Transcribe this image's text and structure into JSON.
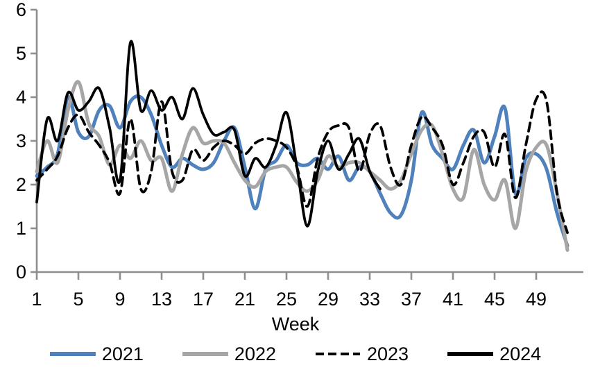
{
  "figure": {
    "xlabel": "Week"
  },
  "chart_data": {
    "type": "line",
    "title": "",
    "xlabel": "Week",
    "ylabel": "",
    "xlim": [
      1,
      53.5
    ],
    "ylim": [
      0,
      6
    ],
    "grid": false,
    "legend_position": "bottom",
    "axis_color": "#8e8e8e",
    "x_ticks": [
      1,
      5,
      9,
      13,
      17,
      21,
      25,
      29,
      33,
      37,
      41,
      45,
      49
    ],
    "y_ticks": [
      0,
      1,
      2,
      3,
      4,
      5,
      6
    ],
    "x": [
      1,
      2,
      3,
      4,
      5,
      6,
      7,
      8,
      9,
      10,
      11,
      12,
      13,
      14,
      15,
      16,
      17,
      18,
      19,
      20,
      21,
      22,
      23,
      24,
      25,
      26,
      27,
      28,
      29,
      30,
      31,
      32,
      33,
      34,
      35,
      36,
      37,
      38,
      39,
      40,
      41,
      42,
      43,
      44,
      45,
      46,
      47,
      48,
      49,
      50,
      51,
      52
    ],
    "series": [
      {
        "name": "2021",
        "color": "#4f81bd",
        "dash": "solid",
        "width": 5,
        "values": [
          2.2,
          2.4,
          2.7,
          4.0,
          3.2,
          3.1,
          3.7,
          3.8,
          3.3,
          3.9,
          4.0,
          3.6,
          2.9,
          2.4,
          2.6,
          2.45,
          2.35,
          2.5,
          3.0,
          3.3,
          2.4,
          1.45,
          2.35,
          2.55,
          2.9,
          2.5,
          2.45,
          2.6,
          2.35,
          2.65,
          2.1,
          2.4,
          2.3,
          1.8,
          1.35,
          1.3,
          2.1,
          3.65,
          2.9,
          2.6,
          2.35,
          2.9,
          3.25,
          2.5,
          3.1,
          3.75,
          1.8,
          2.6,
          2.7,
          2.35,
          1.35,
          0.6
        ]
      },
      {
        "name": "2022",
        "color": "#a6a6a6",
        "dash": "solid",
        "width": 5,
        "values": [
          2.3,
          3.0,
          2.5,
          3.7,
          4.35,
          3.4,
          3.1,
          2.45,
          2.9,
          2.6,
          3.0,
          2.55,
          2.6,
          1.85,
          2.7,
          3.3,
          2.95,
          3.0,
          2.95,
          2.5,
          2.1,
          1.95,
          2.3,
          2.4,
          2.4,
          2.05,
          1.85,
          2.1,
          2.65,
          2.4,
          2.5,
          2.5,
          2.3,
          2.1,
          1.9,
          2.1,
          2.7,
          3.25,
          3.35,
          2.7,
          1.9,
          1.7,
          2.8,
          2.0,
          1.65,
          2.1,
          1.0,
          2.3,
          2.85,
          2.9,
          1.8,
          0.5
        ]
      },
      {
        "name": "2023",
        "color": "#000000",
        "dash": "dashed",
        "width": 3.8,
        "values": [
          2.1,
          2.35,
          2.65,
          3.3,
          3.6,
          3.2,
          2.9,
          2.5,
          1.8,
          3.5,
          1.9,
          2.3,
          3.9,
          2.3,
          2.1,
          2.8,
          2.55,
          2.85,
          3.0,
          2.9,
          2.7,
          2.95,
          3.05,
          3.0,
          2.85,
          2.4,
          1.5,
          2.6,
          3.2,
          3.35,
          3.3,
          2.3,
          3.15,
          3.35,
          2.4,
          2.0,
          2.9,
          3.55,
          3.3,
          2.9,
          2.0,
          2.5,
          3.1,
          3.2,
          2.4,
          3.15,
          1.7,
          2.9,
          3.95,
          3.9,
          1.8,
          0.9
        ]
      },
      {
        "name": "2024",
        "color": "#000000",
        "dash": "solid",
        "width": 3.8,
        "values": [
          1.6,
          3.5,
          3.0,
          4.1,
          3.7,
          3.9,
          4.2,
          3.3,
          2.1,
          5.25,
          3.7,
          4.15,
          3.7,
          4.0,
          3.5,
          4.2,
          3.6,
          3.15,
          3.2,
          3.25,
          2.2,
          2.6,
          2.4,
          2.9,
          3.65,
          2.4,
          1.05,
          2.3,
          3.0,
          2.35,
          2.7,
          3.05,
          2.3,
          1.9
        ]
      }
    ]
  }
}
